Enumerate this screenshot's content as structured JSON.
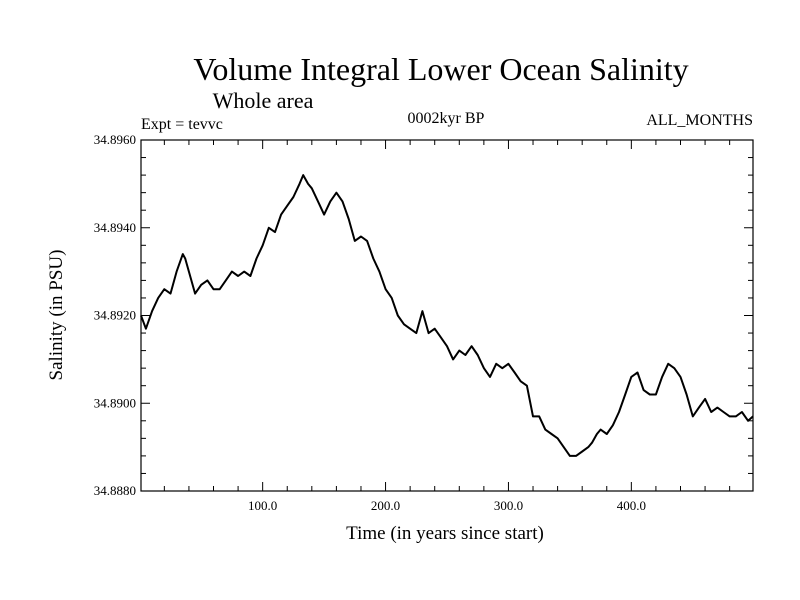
{
  "chart_data": {
    "type": "line",
    "title": "Volume Integral Lower Ocean Salinity",
    "subtitle": "Whole area",
    "experiment_label": "Expt = tevvc",
    "period_label": "0002kyr BP",
    "months_label": "ALL_MONTHS",
    "xlabel": "Time (in years since start)",
    "ylabel": "Salinity (in PSU)",
    "xlim": [
      1,
      499
    ],
    "ylim": [
      34.888,
      34.896
    ],
    "x_ticks": [
      100,
      200,
      300,
      400
    ],
    "x_tick_labels": [
      "100.0",
      "200.0",
      "300.0",
      "400.0"
    ],
    "y_ticks": [
      34.888,
      34.89,
      34.892,
      34.894,
      34.896
    ],
    "y_tick_labels": [
      "34.8880",
      "34.8900",
      "34.8920",
      "34.8940",
      "34.8960"
    ],
    "grid": false,
    "series": [
      {
        "color": "#000000",
        "x": [
          1,
          5,
          10,
          15,
          20,
          25,
          30,
          35,
          37,
          40,
          45,
          50,
          55,
          60,
          65,
          70,
          75,
          80,
          85,
          90,
          95,
          100,
          105,
          110,
          115,
          120,
          125,
          130,
          133,
          137,
          140,
          145,
          150,
          155,
          160,
          165,
          170,
          175,
          180,
          185,
          190,
          195,
          200,
          205,
          210,
          215,
          220,
          225,
          230,
          235,
          240,
          245,
          250,
          255,
          260,
          265,
          270,
          275,
          280,
          285,
          290,
          295,
          300,
          305,
          310,
          315,
          320,
          325,
          330,
          335,
          340,
          345,
          350,
          355,
          360,
          365,
          368,
          372,
          375,
          380,
          385,
          390,
          395,
          400,
          405,
          410,
          415,
          420,
          425,
          430,
          435,
          440,
          445,
          450,
          455,
          460,
          465,
          470,
          475,
          480,
          485,
          490,
          495,
          499
        ],
        "y": [
          34.892,
          34.8917,
          34.8921,
          34.8924,
          34.8926,
          34.8925,
          34.893,
          34.8934,
          34.8933,
          34.893,
          34.8925,
          34.8927,
          34.8928,
          34.8926,
          34.8926,
          34.8928,
          34.893,
          34.8929,
          34.893,
          34.8929,
          34.8933,
          34.8936,
          34.894,
          34.8939,
          34.8943,
          34.8945,
          34.8947,
          34.895,
          34.8952,
          34.895,
          34.8949,
          34.8946,
          34.8943,
          34.8946,
          34.8948,
          34.8946,
          34.8942,
          34.8937,
          34.8938,
          34.8937,
          34.8933,
          34.893,
          34.8926,
          34.8924,
          34.892,
          34.8918,
          34.8917,
          34.8916,
          34.8921,
          34.8916,
          34.8917,
          34.8915,
          34.8913,
          34.891,
          34.8912,
          34.8911,
          34.8913,
          34.8911,
          34.8908,
          34.8906,
          34.8909,
          34.8908,
          34.8909,
          34.8907,
          34.8905,
          34.8904,
          34.8897,
          34.8897,
          34.8894,
          34.8893,
          34.8892,
          34.889,
          34.8888,
          34.8888,
          34.8889,
          34.889,
          34.8891,
          34.8893,
          34.8894,
          34.8893,
          34.8895,
          34.8898,
          34.8902,
          34.8906,
          34.8907,
          34.8903,
          34.8902,
          34.8902,
          34.8906,
          34.8909,
          34.8908,
          34.8906,
          34.8902,
          34.8897,
          34.8899,
          34.8901,
          34.8898,
          34.8899,
          34.8898,
          34.8897,
          34.8897,
          34.8898,
          34.8896,
          34.8897
        ]
      }
    ]
  }
}
